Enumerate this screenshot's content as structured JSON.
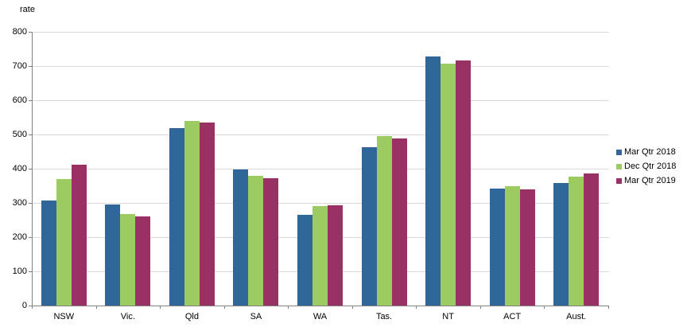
{
  "chart": {
    "y_axis_title": "rate"
  },
  "colors": {
    "series_blue": "#31669B",
    "series_green": "#9BCB61",
    "series_maroon": "#9A3164",
    "gridline": "#d9d9d9",
    "axis": "#808080",
    "text": "#000000",
    "background": "#ffffff"
  },
  "chart_data": {
    "type": "bar",
    "title": "",
    "xlabel": "",
    "ylabel": "rate",
    "categories": [
      "NSW",
      "Vic.",
      "Qld",
      "SA",
      "WA",
      "Tas.",
      "NT",
      "ACT",
      "Aust."
    ],
    "series": [
      {
        "name": "Mar Qtr 2018",
        "color": "#31669B",
        "values": [
          308,
          296,
          518,
          397,
          266,
          462,
          727,
          342,
          357
        ]
      },
      {
        "name": "Dec Qtr 2018",
        "color": "#9BCB61",
        "values": [
          370,
          268,
          539,
          380,
          291,
          496,
          708,
          350,
          377
        ]
      },
      {
        "name": "Mar Qtr 2019",
        "color": "#9A3164",
        "values": [
          411,
          260,
          534,
          372,
          294,
          489,
          716,
          339,
          386
        ]
      }
    ],
    "ylim": [
      0,
      800
    ],
    "yticks": [
      0,
      100,
      200,
      300,
      400,
      500,
      600,
      700,
      800
    ],
    "grid": true,
    "legend_position": "right"
  }
}
